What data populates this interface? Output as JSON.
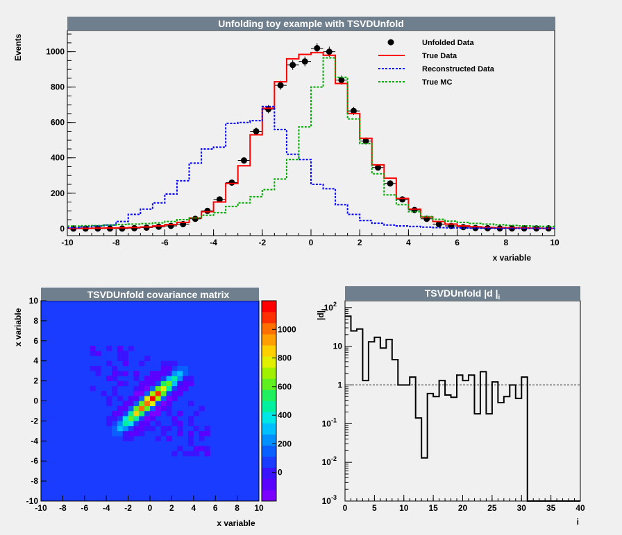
{
  "chart_data": [
    {
      "type": "line",
      "title": "Unfolding toy example with TSVDUnfold",
      "xlabel": "x variable",
      "ylabel": "Events",
      "xlim": [
        -10,
        10
      ],
      "ylim": [
        -40,
        1120
      ],
      "xticks": [
        -10,
        -8,
        -6,
        -4,
        -2,
        0,
        2,
        4,
        6,
        8,
        10
      ],
      "yticks": [
        0,
        200,
        400,
        600,
        800,
        1000
      ],
      "x_bin_edges": [
        -10,
        -9.5,
        -9,
        -8.5,
        -8,
        -7.5,
        -7,
        -6.5,
        -6,
        -5.5,
        -5,
        -4.5,
        -4,
        -3.5,
        -3,
        -2.5,
        -2,
        -1.5,
        -1,
        -0.5,
        0,
        0.5,
        1,
        1.5,
        2,
        2.5,
        3,
        3.5,
        4,
        4.5,
        5,
        5.5,
        6,
        6.5,
        7,
        7.5,
        8,
        8.5,
        9,
        9.5,
        10
      ],
      "legend_position": "top-right",
      "series": [
        {
          "name": "Unfolded Data",
          "style": "markers",
          "color": "#000000",
          "values": [
            0,
            0,
            0,
            0,
            0,
            2,
            5,
            10,
            15,
            25,
            55,
            100,
            165,
            260,
            385,
            550,
            675,
            810,
            925,
            945,
            1020,
            1000,
            840,
            665,
            495,
            345,
            255,
            165,
            105,
            55,
            25,
            15,
            8,
            3,
            2,
            1,
            1,
            1,
            1,
            1
          ]
        },
        {
          "name": "True Data",
          "style": "step",
          "color": "#ff0000",
          "values": [
            1,
            1,
            2,
            3,
            4,
            6,
            9,
            15,
            22,
            35,
            60,
            95,
            150,
            255,
            355,
            530,
            680,
            830,
            960,
            985,
            995,
            980,
            820,
            650,
            510,
            360,
            285,
            170,
            110,
            65,
            40,
            25,
            15,
            10,
            7,
            5,
            4,
            3,
            2,
            1
          ]
        },
        {
          "name": "Reconstructed Data",
          "style": "dashed-step",
          "color": "#0000ff",
          "values": [
            5,
            10,
            15,
            20,
            40,
            80,
            110,
            145,
            195,
            270,
            370,
            450,
            460,
            595,
            600,
            610,
            690,
            560,
            420,
            390,
            250,
            225,
            135,
            80,
            45,
            30,
            20,
            15,
            12,
            8,
            5,
            4,
            3,
            2,
            2,
            1,
            1,
            1,
            1,
            1
          ]
        },
        {
          "name": "True MC",
          "style": "dashed-step",
          "color": "#00aa00",
          "values": [
            14,
            16,
            17,
            20,
            23,
            25,
            28,
            32,
            40,
            50,
            60,
            75,
            90,
            125,
            145,
            180,
            220,
            280,
            390,
            575,
            800,
            965,
            855,
            620,
            480,
            310,
            190,
            135,
            95,
            68,
            52,
            42,
            35,
            29,
            25,
            21,
            18,
            15,
            13,
            12
          ]
        }
      ]
    },
    {
      "type": "heatmap",
      "title": "TSVDUnfold covariance matrix",
      "xlabel": "x variable",
      "ylabel": "x variable",
      "xlim": [
        -10,
        10
      ],
      "ylim": [
        -10,
        10
      ],
      "xticks": [
        -10,
        -8,
        -6,
        -4,
        -2,
        0,
        2,
        4,
        6,
        8,
        10
      ],
      "yticks": [
        -10,
        -8,
        -6,
        -4,
        -2,
        0,
        2,
        4,
        6,
        8,
        10
      ],
      "zlim": [
        -200,
        1200
      ],
      "colorbar_ticks": [
        0,
        200,
        400,
        600,
        800,
        1000
      ],
      "description_of_values": "covariance strongest along diagonal between -4 and 4, peak ~1100 near (0,0)"
    },
    {
      "type": "line",
      "title": "TSVDUnfold |d |",
      "title_subscript": "i",
      "xlabel": "i",
      "ylabel": "|d|",
      "ylabel_subscript": "i",
      "yscale": "log",
      "xlim": [
        0,
        40
      ],
      "ylim": [
        0.001,
        150
      ],
      "xticks": [
        0,
        5,
        10,
        15,
        20,
        25,
        30,
        35,
        40
      ],
      "yticks": [
        {
          "base": "10",
          "exp": "-3",
          "value": 0.001
        },
        {
          "base": "10",
          "exp": "-2",
          "value": 0.01
        },
        {
          "base": "10",
          "exp": "-1",
          "value": 0.1
        },
        {
          "base": "1",
          "exp": "",
          "value": 1
        },
        {
          "base": "10",
          "exp": "",
          "value": 10
        },
        {
          "base": "10",
          "exp": "2",
          "value": 100
        }
      ],
      "reference_line": 1,
      "series": [
        {
          "name": "",
          "style": "step",
          "color": "#000000",
          "values": [
            60,
            25,
            28,
            1.3,
            13,
            17,
            9,
            15,
            4.5,
            1,
            1,
            1.6,
            0.14,
            0.013,
            0.6,
            0.5,
            1.3,
            0.55,
            0.48,
            1.8,
            1.3,
            1.8,
            0.18,
            2.2,
            0.18,
            1.2,
            0.35,
            0.5,
            1,
            0.45,
            1.6,
            0.001,
            0.001,
            0.001,
            0.001,
            0.001,
            0.001,
            0.001,
            0.001,
            0.001
          ]
        }
      ]
    }
  ]
}
